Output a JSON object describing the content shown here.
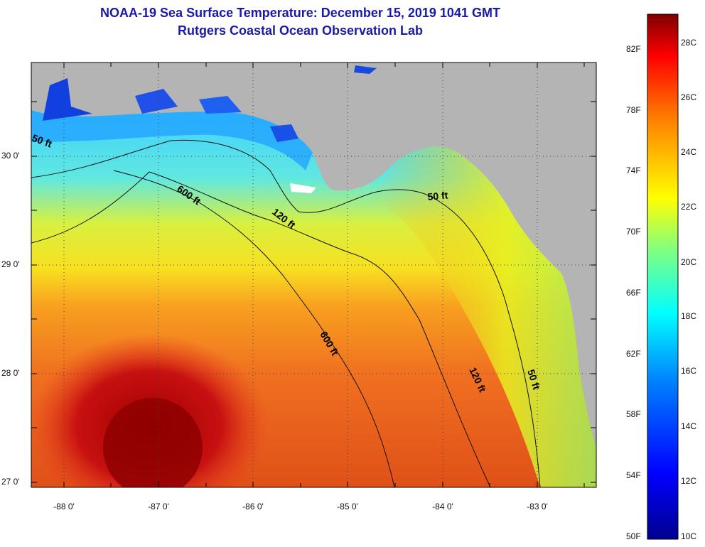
{
  "title": {
    "line1": "NOAA-19 Sea Surface Temperature:  December 15, 2019 1041 GMT",
    "line2": "Rutgers Coastal Ocean Observation Lab"
  },
  "map": {
    "land_color": "#b4b4b4",
    "latitude_labels": [
      "30 0'",
      "29 0'",
      "28 0'",
      "27 0'"
    ],
    "longitude_labels": [
      "-88 0'",
      "-87 0'",
      "-86 0'",
      "-85 0'",
      "-84 0'",
      "-83 0'"
    ],
    "contour_labels": [
      "50 ft",
      "600 ft",
      "120 ft",
      "50 ft",
      "600 ft",
      "120 ft",
      "50 ft"
    ]
  },
  "colorbar": {
    "fahrenheit_labels": [
      "82F",
      "78F",
      "74F",
      "70F",
      "66F",
      "62F",
      "58F",
      "54F",
      "50F"
    ],
    "celsius_labels": [
      "28C",
      "26C",
      "24C",
      "22C",
      "20C",
      "18C",
      "16C",
      "14C",
      "12C",
      "10C"
    ],
    "colors": [
      "#00008f",
      "#0000ff",
      "#0080ff",
      "#00ffff",
      "#80ff80",
      "#ffff00",
      "#ff8000",
      "#ff0000",
      "#800000"
    ]
  }
}
